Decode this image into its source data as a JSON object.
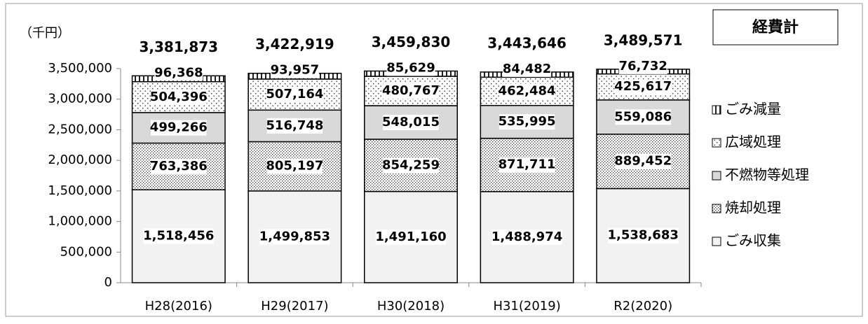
{
  "chart_data": {
    "type": "stacked-bar",
    "title": "経費計",
    "unit_label": "（千円）",
    "categories": [
      "H28(2016)",
      "H29(2017)",
      "H30(2018)",
      "H31(2019)",
      "R2(2020)"
    ],
    "series": [
      {
        "name": "ごみ収集",
        "color": "#f2f2f2",
        "pattern": "solid",
        "values": [
          1518456,
          1499853,
          1491160,
          1488974,
          1538683
        ],
        "value_labels": [
          "1,518,456",
          "1,499,853",
          "1,491,160",
          "1,488,974",
          "1,538,683"
        ]
      },
      {
        "name": "焼却処理",
        "color": "#ffffff",
        "pattern": "dense-dots",
        "values": [
          763386,
          805197,
          854259,
          871711,
          889452
        ],
        "value_labels": [
          "763,386",
          "805,197",
          "854,259",
          "871,711",
          "889,452"
        ]
      },
      {
        "name": "不燃物等処理",
        "color": "#d9d9d9",
        "pattern": "solid",
        "values": [
          499266,
          516748,
          548015,
          535995,
          559086
        ],
        "value_labels": [
          "499,266",
          "516,748",
          "548,015",
          "535,995",
          "559,086"
        ]
      },
      {
        "name": "広域処理",
        "color": "#ffffff",
        "pattern": "sparse-dots",
        "values": [
          504396,
          507164,
          480767,
          462484,
          425617
        ],
        "value_labels": [
          "504,396",
          "507,164",
          "480,767",
          "462,484",
          "425,617"
        ]
      },
      {
        "name": "ごみ減量",
        "color": "#ffffff",
        "pattern": "vertical-stripes",
        "values": [
          96368,
          93957,
          85629,
          84482,
          76732
        ],
        "value_labels": [
          "96,368",
          "93,957",
          "85,629",
          "84,482",
          "76,732"
        ]
      }
    ],
    "totals": {
      "values": [
        3381873,
        3422919,
        3459830,
        3443646,
        3489571
      ],
      "value_labels": [
        "3,381,873",
        "3,422,919",
        "3,459,830",
        "3,443,646",
        "3,489,571"
      ]
    },
    "ylim": [
      0,
      3500000
    ],
    "yticks": [
      0,
      {
        "value": 500000,
        "label": "500,000"
      },
      {
        "value": 1000000,
        "label": "1,000,000"
      },
      {
        "value": 1500000,
        "label": "1,500,000"
      },
      {
        "value": 2000000,
        "label": "2,000,000"
      },
      {
        "value": 2500000,
        "label": "2,500,000"
      },
      {
        "value": 3000000,
        "label": "3,000,000"
      },
      {
        "value": 3500000,
        "label": "3,500,000"
      }
    ],
    "grid": false,
    "legend_position": "right"
  }
}
